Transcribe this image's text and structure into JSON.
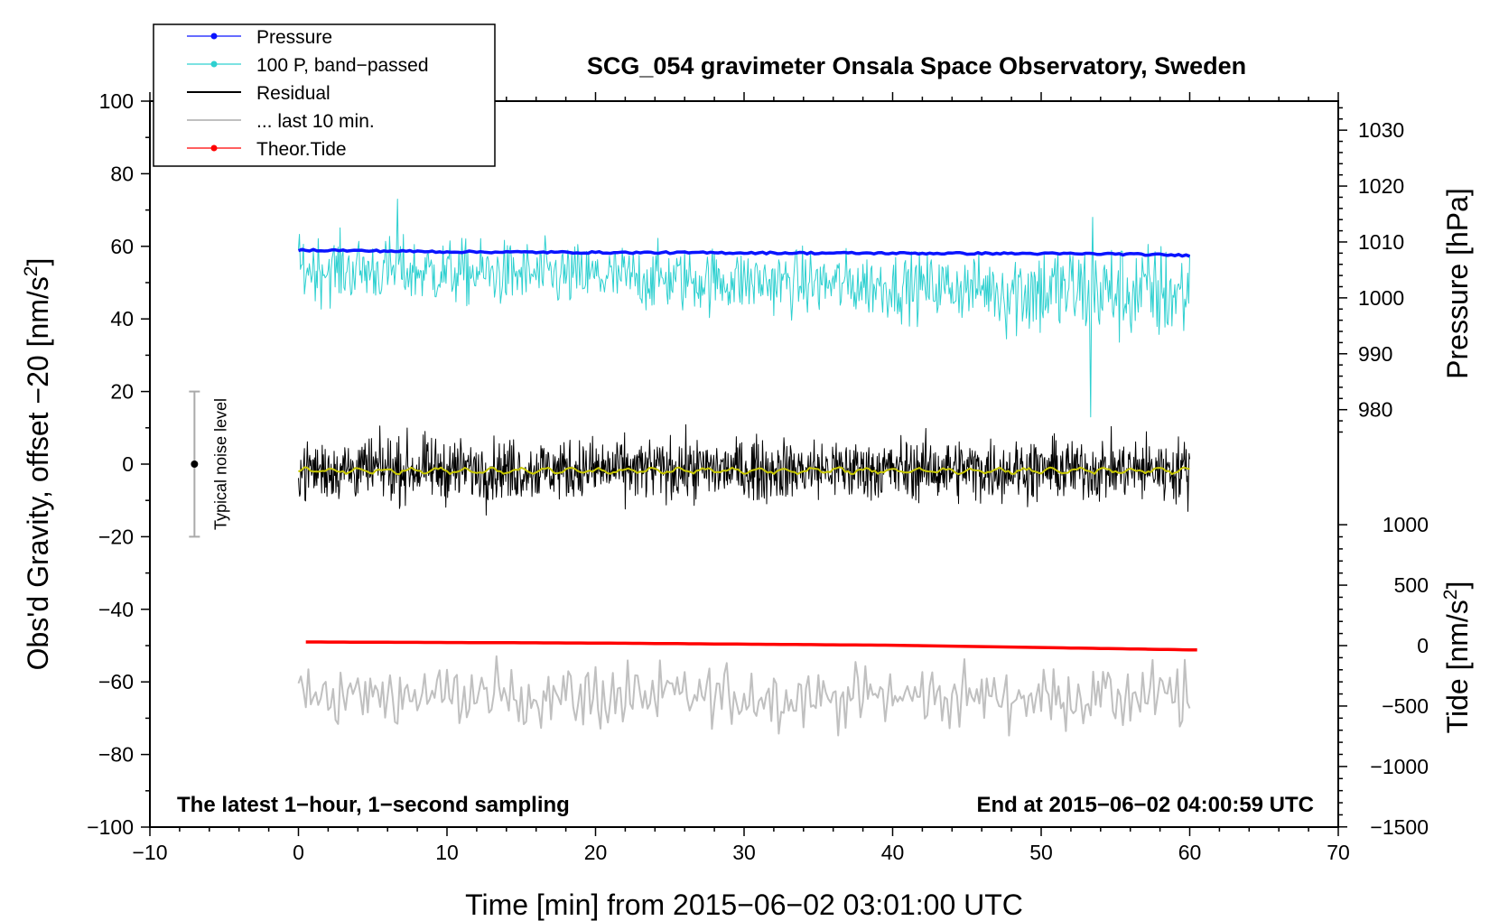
{
  "chart_data": {
    "type": "line",
    "title": "SCG_054 gravimeter Onsala Space Observatory, Sweden",
    "xlabel": "Time [min] from 2015−06−02 03:01:00 UTC",
    "ylabel": "Obs'd Gravity, offset −20 [nm/s",
    "ylabel_sup": "2",
    "ylabel_end": "]",
    "y2label": "Pressure [hPa]",
    "y3label": "Tide [nm/s",
    "y3label_sup": "2",
    "y3label_end": "]",
    "xlim": [
      -10,
      70
    ],
    "ylim": [
      -100,
      100
    ],
    "x_ticks": [
      -10,
      0,
      10,
      20,
      30,
      40,
      50,
      60,
      70
    ],
    "x_tick_labels": [
      "−10",
      "0",
      "10",
      "20",
      "30",
      "40",
      "50",
      "60",
      "70"
    ],
    "y_ticks": [
      100,
      80,
      60,
      40,
      20,
      0,
      -20,
      -40,
      -60,
      -80,
      -100
    ],
    "y_tick_labels": [
      "100",
      "80",
      "60",
      "40",
      "20",
      "0",
      "−20",
      "−40",
      "−60",
      "−80",
      "−100"
    ],
    "pressure_axis": {
      "ticks": [
        1030,
        1020,
        1010,
        1000,
        990,
        980
      ],
      "tick_labels": [
        "1030",
        "1020",
        "1010",
        "1000",
        "990",
        "980"
      ],
      "gravity_at_1030": 92,
      "gravity_per_hPa": 1.54
    },
    "tide_axis": {
      "ticks": [
        1000,
        500,
        0,
        -500,
        -1000,
        -1500
      ],
      "tick_labels": [
        "1000",
        "500",
        "0",
        "−500",
        "−1000",
        "−1500"
      ],
      "gravity_at_0": -50,
      "gravity_per_nms2": 0.0333
    },
    "series": [
      {
        "name": "Pressure",
        "color": "#0a14ff",
        "style": "line-marker",
        "x": [
          0,
          10,
          20,
          30,
          40,
          50,
          55,
          60
        ],
        "values": [
          59,
          58.5,
          58.3,
          58.2,
          58.1,
          58.0,
          57.9,
          57.5
        ]
      },
      {
        "name": "100 P, band−passed",
        "color": "#2ed0d0",
        "style": "line-marker",
        "x_range": [
          0,
          60
        ],
        "mean": 50,
        "min": 13,
        "max": 73
      },
      {
        "name": "Residual",
        "color": "#000000",
        "style": "line",
        "x_range": [
          0,
          60
        ],
        "mean": -1.5,
        "min": -20,
        "max": 16
      },
      {
        "name": "... last 10 min.",
        "color": "#c0c0c0",
        "style": "line",
        "x_range": [
          0,
          60
        ],
        "mean": -64,
        "min": -79,
        "max": -46
      },
      {
        "name": "Theor.Tide",
        "color": "#ff0000",
        "style": "line-marker",
        "x": [
          0.5,
          20,
          40,
          60.5
        ],
        "values": [
          -49,
          -49.3,
          -49.9,
          -51.2
        ]
      },
      {
        "name": "Residual smoothed",
        "color": "#c8c800",
        "style": "line",
        "x_range": [
          0,
          60
        ],
        "mean": -1.8
      }
    ],
    "noise_bar": {
      "label": "Typical noise level",
      "x": -7,
      "center": 0,
      "low": -20,
      "high": 20
    },
    "note_left": "The latest 1−hour, 1−second sampling",
    "note_right": "End at 2015−06−02 04:00:59 UTC",
    "legend": {
      "placement": "top-left",
      "items": [
        "Pressure",
        "100 P, band−passed",
        "Residual",
        "... last 10 min.",
        "Theor.Tide"
      ]
    }
  }
}
